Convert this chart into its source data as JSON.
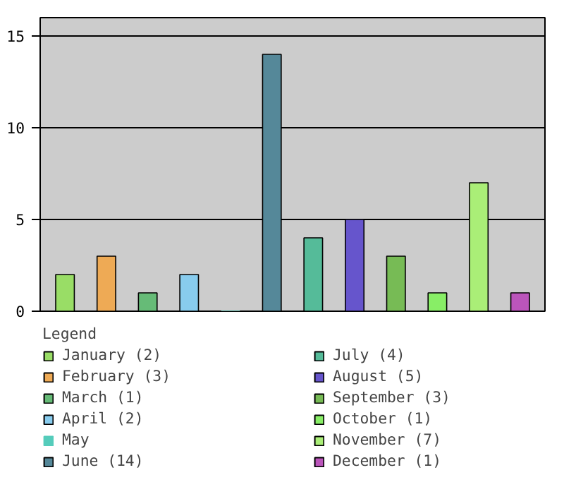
{
  "chart_data": {
    "type": "bar",
    "legend_title": "Legend",
    "categories": [
      null,
      null,
      null,
      null,
      null,
      null,
      null,
      null,
      null,
      null,
      null,
      null
    ],
    "series": [
      {
        "name": "January (2)",
        "color": "#99dd66",
        "values": [
          2,
          null,
          null,
          null,
          null,
          null,
          null,
          null,
          null,
          null,
          null,
          null
        ]
      },
      {
        "name": "February (3)",
        "color": "#eeaa55",
        "values": [
          null,
          3,
          null,
          null,
          null,
          null,
          null,
          null,
          null,
          null,
          null,
          null
        ]
      },
      {
        "name": "March (1)",
        "color": "#66bb77",
        "values": [
          null,
          null,
          1,
          null,
          null,
          null,
          null,
          null,
          null,
          null,
          null,
          null
        ]
      },
      {
        "name": "April (2)",
        "color": "#88ccee",
        "values": [
          null,
          null,
          null,
          2,
          null,
          null,
          null,
          null,
          null,
          null,
          null,
          null
        ]
      },
      {
        "name": "May",
        "color": "#55ccbb",
        "values": [
          null,
          null,
          null,
          null,
          0,
          null,
          null,
          null,
          null,
          null,
          null,
          null
        ]
      },
      {
        "name": "June (14)",
        "color": "#558899",
        "values": [
          null,
          null,
          null,
          null,
          null,
          14,
          null,
          null,
          null,
          null,
          null,
          null
        ]
      },
      {
        "name": "July (4)",
        "color": "#55bb99",
        "values": [
          null,
          null,
          null,
          null,
          null,
          null,
          4,
          null,
          null,
          null,
          null,
          null
        ]
      },
      {
        "name": "August (5)",
        "color": "#6655cc",
        "values": [
          null,
          null,
          null,
          null,
          null,
          null,
          null,
          5,
          null,
          null,
          null,
          null
        ]
      },
      {
        "name": "September (3)",
        "color": "#77bb55",
        "values": [
          null,
          null,
          null,
          null,
          null,
          null,
          null,
          null,
          3,
          null,
          null,
          null
        ]
      },
      {
        "name": "October (1)",
        "color": "#88ee66",
        "values": [
          null,
          null,
          null,
          null,
          null,
          null,
          null,
          null,
          null,
          1,
          null,
          null
        ]
      },
      {
        "name": "November (7)",
        "color": "#aaee77",
        "values": [
          null,
          null,
          null,
          null,
          null,
          null,
          null,
          null,
          null,
          null,
          7,
          null
        ]
      },
      {
        "name": "December (1)",
        "color": "#bb55bb",
        "values": [
          null,
          null,
          null,
          null,
          null,
          null,
          null,
          null,
          null,
          null,
          null,
          1
        ]
      }
    ],
    "ylim": [
      0,
      16
    ],
    "yticks": [
      0,
      5,
      10,
      15
    ],
    "grid": "y",
    "legend": "bottom",
    "tick_labels": "y"
  }
}
